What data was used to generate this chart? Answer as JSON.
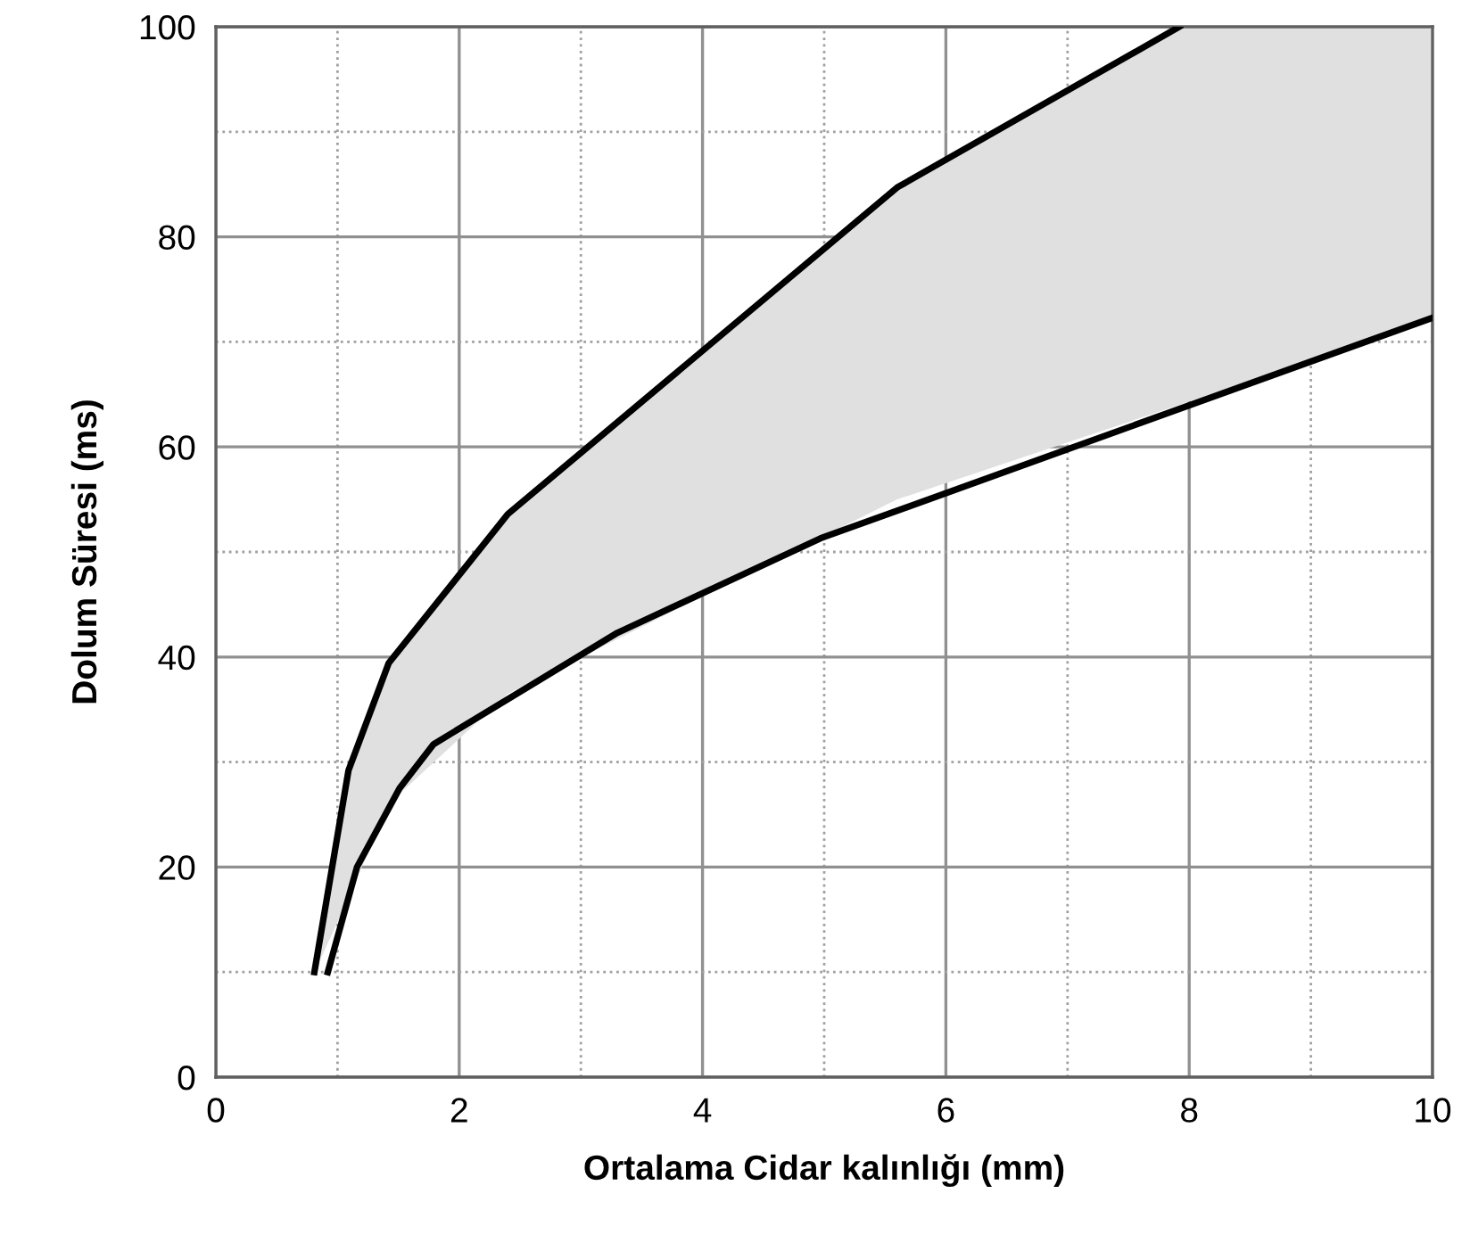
{
  "chart_data": {
    "type": "line",
    "xlabel": "Ortalama Cidar kalınlığı (mm)",
    "ylabel": "Dolum Süresi (ms)",
    "xlim": [
      0,
      10
    ],
    "ylim": [
      0,
      100
    ],
    "xticks": [
      0,
      {
        "value": 1,
        "label": null
      },
      2,
      {
        "value": 3,
        "label": null
      },
      4,
      {
        "value": 5,
        "label": null
      },
      6,
      {
        "value": 7,
        "label": null
      },
      8,
      {
        "value": 9,
        "label": null
      },
      10
    ],
    "yticks": [
      0,
      {
        "value": 10,
        "label": null
      },
      20,
      {
        "value": 30,
        "label": null
      },
      40,
      {
        "value": 50,
        "label": null
      },
      60,
      {
        "value": 70,
        "label": null
      },
      80,
      {
        "value": 90,
        "label": null
      },
      100
    ],
    "grid": true,
    "marker": "none",
    "line_style": "solid",
    "series": [
      {
        "color": "#000000",
        "x": [
          0.81,
          1.09,
          1.42,
          2.4,
          5.6,
          7.92,
          10
        ],
        "values": [
          10,
          29.2,
          39.4,
          53.6,
          84.7,
          100,
          null
        ],
        "lower": [
          10,
          17,
          26,
          36.5,
          55,
          64,
          72.3
        ],
        "upper": [
          10,
          29.2,
          39.4,
          53.6,
          84.7,
          100,
          100
        ]
      },
      {
        "color": "#000000",
        "x": [
          0.92,
          1.16,
          1.51,
          1.79,
          3.3,
          4.97,
          10
        ],
        "values": [
          10,
          20,
          27.5,
          31.7,
          42.3,
          51.3,
          72.3
        ]
      }
    ]
  }
}
